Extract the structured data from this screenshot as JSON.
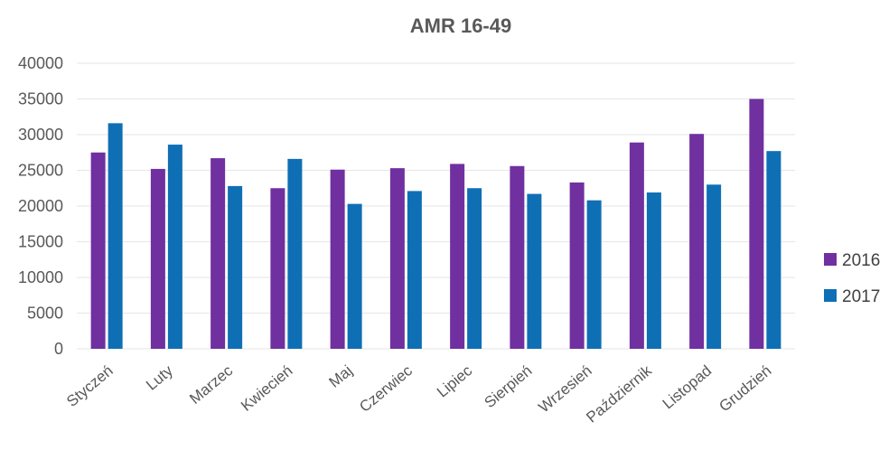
{
  "chart_data": {
    "type": "bar",
    "title": "AMR 16-49",
    "xlabel": "",
    "ylabel": "",
    "ylim": [
      0,
      40000
    ],
    "yticks": [
      0,
      5000,
      10000,
      15000,
      20000,
      25000,
      30000,
      35000,
      40000
    ],
    "grid": true,
    "legend_position": "right",
    "categories": [
      "Styczeń",
      "Luty",
      "Marzec",
      "Kwiecień",
      "Maj",
      "Czerwiec",
      "Lipiec",
      "Sierpień",
      "Wrzesień",
      "Październik",
      "Listopad",
      "Grudzień"
    ],
    "series": [
      {
        "name": "2016",
        "color": "#7030a0",
        "values": [
          27500,
          25200,
          26700,
          22500,
          25100,
          25300,
          25900,
          25600,
          23300,
          28900,
          30100,
          35000
        ]
      },
      {
        "name": "2017",
        "color": "#0f6fb5",
        "values": [
          31600,
          28600,
          22800,
          26600,
          20300,
          22100,
          22500,
          21700,
          20800,
          21900,
          23000,
          27700
        ]
      }
    ]
  }
}
